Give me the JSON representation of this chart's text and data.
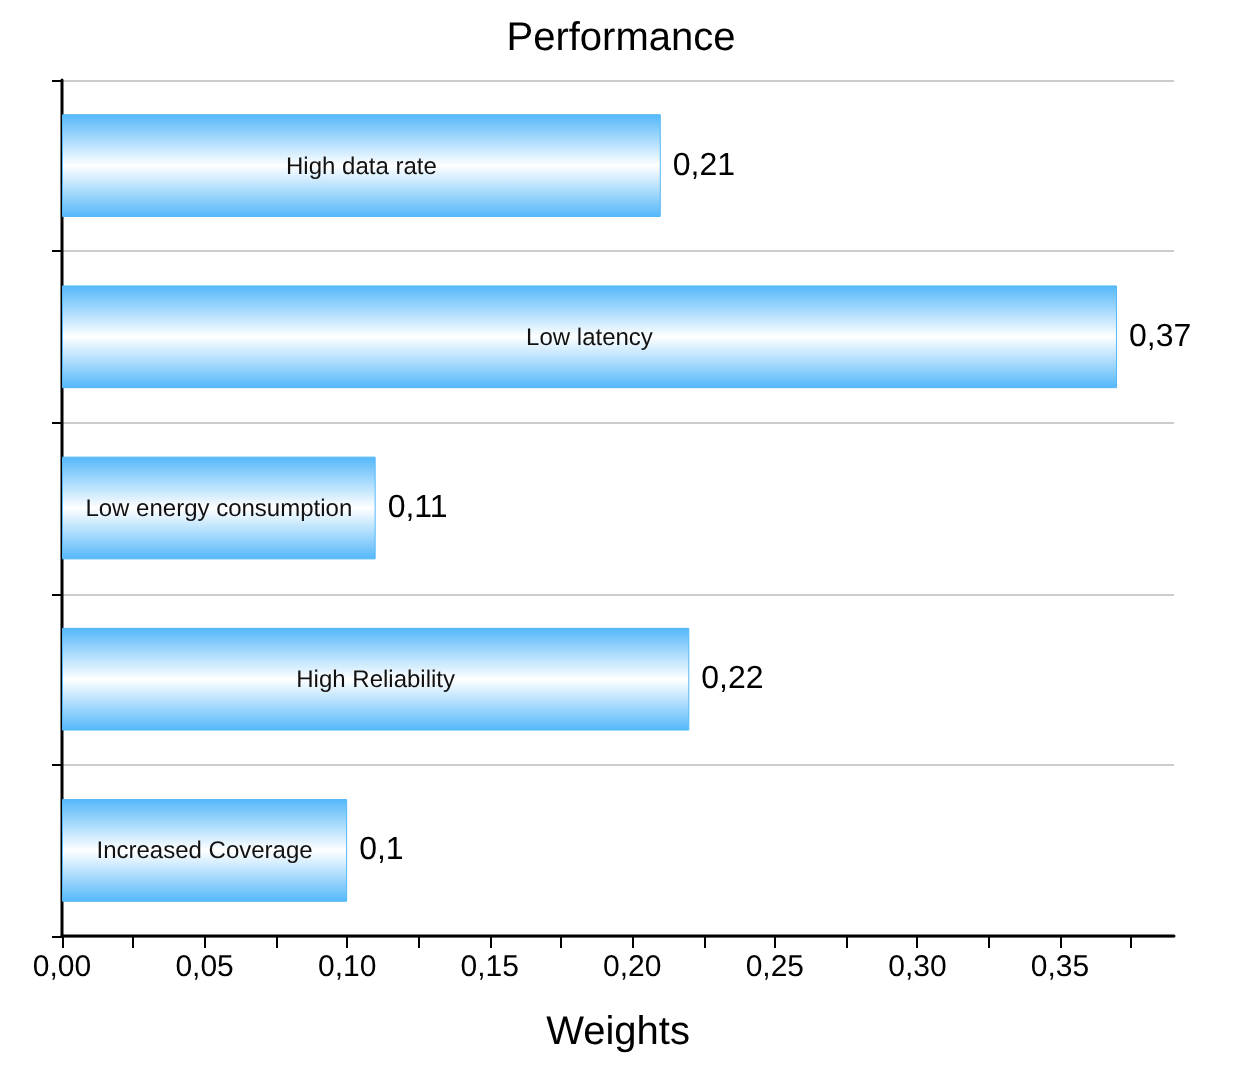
{
  "chart_data": {
    "type": "bar",
    "orientation": "horizontal",
    "title": "Performance",
    "xlabel": "Weights",
    "categories": [
      "High data rate",
      "Low latency",
      "Low energy consumption",
      "High Reliability",
      "Increased Coverage"
    ],
    "values": [
      0.21,
      0.37,
      0.11,
      0.22,
      0.1
    ],
    "value_labels": [
      "0,21",
      "0,37",
      "0,11",
      "0,22",
      "0,1"
    ],
    "color": "#55b8fa",
    "xlim": [
      0,
      0.39
    ],
    "xticks": [
      {
        "value": 0,
        "label": "0,00"
      },
      {
        "value": 0.05,
        "label": "0,05"
      },
      {
        "value": 0.1,
        "label": "0,10"
      },
      {
        "value": 0.15,
        "label": "0,15"
      },
      {
        "value": 0.2,
        "label": "0,20"
      },
      {
        "value": 0.25,
        "label": "0,25"
      },
      {
        "value": 0.3,
        "label": "0,30"
      },
      {
        "value": 0.35,
        "label": "0,35"
      }
    ],
    "grid": "y"
  }
}
